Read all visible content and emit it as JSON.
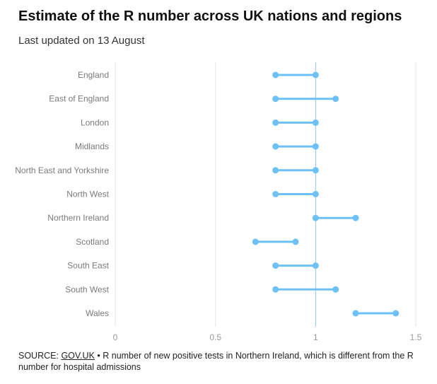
{
  "header": {
    "title": "Estimate of the R number across UK nations and regions",
    "subtitle": "Last updated on 13 August"
  },
  "footer": {
    "source_prefix": "SOURCE: ",
    "source_link": "GOV.UK",
    "source_note": " • R number of new positive tests in Northern Ireland, which is different from the R number for hospital admissions"
  },
  "colors": {
    "range": "#6ec1f7",
    "reference_line": "#8ec9ef",
    "gridline": "#e6e6e6"
  },
  "chart_data": {
    "type": "dumbbell",
    "title": "Estimate of the R number across UK nations and regions",
    "subtitle": "Last updated on 13 August",
    "xlim": [
      0,
      1.5
    ],
    "xticks": [
      0,
      0.5,
      1,
      1.5
    ],
    "xtick_labels": [
      "0",
      "0.5",
      "1",
      "1.5"
    ],
    "reference_value": 1,
    "grid": true,
    "categories": [
      "England",
      "East of England",
      "London",
      "Midlands",
      "North East and Yorkshire",
      "North West",
      "Northern Ireland",
      "Scotland",
      "South East",
      "South West",
      "Wales"
    ],
    "low": [
      0.8,
      0.8,
      0.8,
      0.8,
      0.8,
      0.8,
      1.0,
      0.7,
      0.8,
      0.8,
      1.2
    ],
    "high": [
      1.0,
      1.1,
      1.0,
      1.0,
      1.0,
      1.0,
      1.2,
      0.9,
      1.0,
      1.1,
      1.4
    ]
  }
}
